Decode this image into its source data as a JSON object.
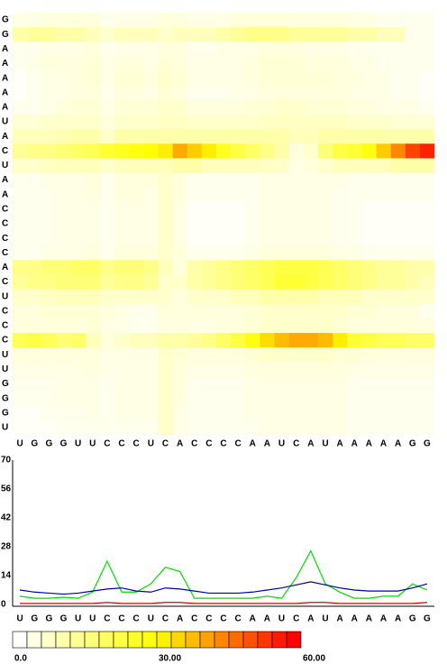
{
  "chart_data": [
    {
      "type": "heatmap",
      "x": [
        "U",
        "G",
        "G",
        "G",
        "U",
        "U",
        "C",
        "C",
        "C",
        "U",
        "C",
        "A",
        "C",
        "C",
        "C",
        "C",
        "A",
        "A",
        "U",
        "C",
        "A",
        "U",
        "A",
        "A",
        "A",
        "A",
        "A",
        "G",
        "G"
      ],
      "y": [
        "G",
        "G",
        "A",
        "A",
        "A",
        "A",
        "A",
        "U",
        "A",
        "C",
        "U",
        "A",
        "A",
        "C",
        "C",
        "C",
        "C",
        "A",
        "C",
        "U",
        "C",
        "C",
        "C",
        "U",
        "U",
        "G",
        "G",
        "G",
        "U"
      ],
      "values": [
        [
          3,
          3,
          4,
          4,
          4,
          4,
          2,
          3,
          3,
          3,
          4,
          4,
          3,
          3,
          3,
          4,
          4,
          4,
          4,
          4,
          4,
          4,
          4,
          3,
          3,
          2,
          2,
          2,
          2
        ],
        [
          10,
          12,
          12,
          10,
          10,
          8,
          6,
          8,
          8,
          8,
          6,
          8,
          8,
          8,
          10,
          12,
          14,
          14,
          14,
          12,
          12,
          12,
          12,
          10,
          10,
          8,
          8,
          2,
          2
        ],
        [
          2,
          2,
          3,
          3,
          3,
          4,
          2,
          3,
          3,
          3,
          4,
          4,
          2,
          2,
          3,
          3,
          3,
          4,
          4,
          4,
          3,
          3,
          3,
          2,
          2,
          2,
          2,
          2,
          2
        ],
        [
          2,
          3,
          4,
          4,
          4,
          5,
          3,
          4,
          4,
          3,
          5,
          4,
          3,
          3,
          3,
          3,
          4,
          5,
          5,
          5,
          4,
          4,
          4,
          3,
          3,
          2,
          2,
          2,
          2
        ],
        [
          1,
          2,
          3,
          3,
          4,
          5,
          3,
          5,
          5,
          4,
          6,
          5,
          3,
          3,
          3,
          3,
          4,
          5,
          5,
          5,
          5,
          5,
          4,
          4,
          3,
          3,
          2,
          2,
          1
        ],
        [
          1,
          2,
          3,
          3,
          4,
          4,
          2,
          4,
          4,
          3,
          5,
          4,
          2,
          2,
          2,
          3,
          3,
          4,
          4,
          4,
          4,
          4,
          4,
          3,
          3,
          3,
          2,
          2,
          1
        ],
        [
          2,
          2,
          3,
          4,
          5,
          5,
          3,
          5,
          5,
          5,
          6,
          6,
          4,
          4,
          4,
          4,
          5,
          5,
          6,
          6,
          5,
          5,
          5,
          4,
          4,
          3,
          3,
          3,
          2
        ],
        [
          5,
          5,
          6,
          6,
          6,
          6,
          4,
          6,
          6,
          6,
          7,
          7,
          6,
          6,
          6,
          6,
          6,
          7,
          7,
          7,
          7,
          7,
          7,
          6,
          6,
          6,
          5,
          5,
          5
        ],
        [
          8,
          8,
          8,
          9,
          10,
          10,
          6,
          10,
          10,
          10,
          10,
          10,
          10,
          10,
          10,
          10,
          10,
          10,
          10,
          8,
          8,
          10,
          10,
          10,
          10,
          10,
          10,
          10,
          10
        ],
        [
          12,
          14,
          14,
          16,
          18,
          20,
          24,
          26,
          28,
          30,
          32,
          40,
          36,
          32,
          26,
          22,
          18,
          14,
          10,
          4,
          6,
          16,
          22,
          24,
          28,
          36,
          44,
          52,
          56
        ],
        [
          6,
          6,
          7,
          8,
          8,
          8,
          6,
          8,
          8,
          8,
          8,
          10,
          10,
          8,
          8,
          8,
          8,
          7,
          6,
          3,
          4,
          6,
          8,
          8,
          8,
          8,
          10,
          10,
          10
        ],
        [
          2,
          2,
          3,
          3,
          3,
          4,
          2,
          4,
          4,
          4,
          6,
          4,
          2,
          2,
          2,
          2,
          2,
          3,
          3,
          3,
          3,
          3,
          3,
          2,
          2,
          2,
          2,
          2,
          2
        ],
        [
          2,
          2,
          2,
          3,
          3,
          4,
          2,
          4,
          4,
          3,
          6,
          4,
          2,
          2,
          2,
          2,
          2,
          3,
          3,
          3,
          3,
          3,
          2,
          2,
          2,
          2,
          2,
          2,
          2
        ],
        [
          2,
          2,
          2,
          3,
          3,
          3,
          2,
          3,
          3,
          3,
          6,
          3,
          1,
          1,
          1,
          1,
          2,
          3,
          3,
          3,
          3,
          3,
          2,
          2,
          1,
          1,
          1,
          1,
          1
        ],
        [
          2,
          2,
          2,
          3,
          3,
          3,
          2,
          3,
          3,
          3,
          6,
          3,
          1,
          1,
          1,
          1,
          2,
          3,
          3,
          3,
          3,
          3,
          2,
          2,
          1,
          1,
          1,
          1,
          1
        ],
        [
          2,
          2,
          2,
          3,
          3,
          3,
          2,
          3,
          3,
          3,
          6,
          3,
          1,
          1,
          1,
          1,
          2,
          3,
          3,
          3,
          3,
          3,
          2,
          2,
          1,
          1,
          1,
          1,
          1
        ],
        [
          2,
          2,
          3,
          3,
          3,
          4,
          2,
          4,
          4,
          4,
          6,
          4,
          2,
          2,
          2,
          2,
          3,
          4,
          4,
          4,
          4,
          4,
          3,
          3,
          2,
          2,
          2,
          2,
          2
        ],
        [
          14,
          14,
          16,
          16,
          18,
          18,
          14,
          16,
          16,
          14,
          8,
          4,
          10,
          12,
          14,
          16,
          18,
          20,
          22,
          22,
          22,
          20,
          18,
          16,
          14,
          12,
          12,
          10,
          10
        ],
        [
          12,
          14,
          14,
          16,
          16,
          16,
          12,
          14,
          14,
          12,
          6,
          6,
          10,
          12,
          14,
          16,
          18,
          20,
          24,
          24,
          22,
          20,
          18,
          16,
          14,
          12,
          12,
          10,
          8
        ],
        [
          6,
          6,
          7,
          8,
          8,
          8,
          6,
          6,
          6,
          6,
          6,
          4,
          6,
          6,
          6,
          8,
          8,
          10,
          10,
          10,
          10,
          8,
          8,
          8,
          6,
          6,
          6,
          6,
          6
        ],
        [
          4,
          4,
          5,
          5,
          5,
          5,
          4,
          3,
          2,
          2,
          4,
          4,
          4,
          4,
          4,
          4,
          5,
          6,
          6,
          6,
          6,
          6,
          6,
          5,
          5,
          4,
          4,
          4,
          2
        ],
        [
          4,
          4,
          4,
          4,
          4,
          5,
          3,
          3,
          2,
          2,
          4,
          4,
          3,
          3,
          4,
          4,
          5,
          6,
          6,
          6,
          6,
          6,
          5,
          4,
          4,
          4,
          4,
          4,
          4
        ],
        [
          20,
          22,
          20,
          16,
          18,
          8,
          4,
          6,
          8,
          8,
          10,
          10,
          12,
          14,
          18,
          22,
          28,
          34,
          38,
          40,
          40,
          38,
          32,
          24,
          22,
          20,
          20,
          18,
          18
        ],
        [
          4,
          4,
          4,
          4,
          4,
          4,
          3,
          3,
          3,
          3,
          6,
          5,
          4,
          4,
          4,
          4,
          5,
          6,
          6,
          6,
          6,
          6,
          5,
          5,
          4,
          4,
          4,
          4,
          4
        ],
        [
          3,
          3,
          3,
          3,
          3,
          4,
          3,
          3,
          3,
          3,
          6,
          4,
          3,
          3,
          3,
          3,
          4,
          4,
          4,
          4,
          4,
          4,
          4,
          3,
          3,
          3,
          3,
          3,
          3
        ],
        [
          2,
          2,
          2,
          3,
          3,
          3,
          2,
          3,
          3,
          3,
          6,
          4,
          2,
          2,
          2,
          2,
          3,
          3,
          3,
          3,
          3,
          3,
          3,
          2,
          2,
          2,
          2,
          2,
          2
        ],
        [
          2,
          2,
          2,
          3,
          3,
          3,
          2,
          3,
          3,
          3,
          6,
          4,
          2,
          2,
          2,
          2,
          3,
          3,
          3,
          3,
          3,
          3,
          3,
          2,
          2,
          2,
          2,
          2,
          2
        ],
        [
          1,
          1,
          2,
          2,
          2,
          3,
          2,
          3,
          3,
          3,
          6,
          3,
          2,
          2,
          2,
          2,
          3,
          3,
          3,
          3,
          3,
          3,
          3,
          2,
          2,
          2,
          2,
          2,
          2
        ],
        [
          1,
          1,
          1,
          2,
          2,
          2,
          2,
          2,
          2,
          2,
          6,
          3,
          2,
          2,
          2,
          2,
          2,
          3,
          3,
          3,
          3,
          3,
          3,
          2,
          2,
          2,
          2,
          2,
          2
        ]
      ],
      "colors": [
        "#ffffff",
        "#ffff00",
        "#ff0000"
      ],
      "zlim": [
        0,
        60
      ],
      "zticks": [
        {
          "value": 0,
          "label": "0.0"
        },
        {
          "value": 30,
          "label": "30.00"
        },
        {
          "value": 60,
          "label": "60.00"
        }
      ]
    },
    {
      "type": "line",
      "categories": [
        "U",
        "G",
        "G",
        "G",
        "U",
        "U",
        "C",
        "C",
        "C",
        "U",
        "C",
        "A",
        "C",
        "C",
        "C",
        "C",
        "A",
        "A",
        "U",
        "C",
        "A",
        "U",
        "A",
        "A",
        "A",
        "A",
        "A",
        "G",
        "G"
      ],
      "series": [
        {
          "color": "#00dd00",
          "values": [
            4,
            3,
            3,
            3.5,
            3,
            6,
            21,
            6,
            6,
            10,
            18,
            16,
            3,
            3,
            3,
            3,
            3,
            4,
            3,
            13,
            26,
            10,
            6,
            3,
            3,
            4,
            4,
            10,
            7
          ]
        },
        {
          "color": "#0000aa",
          "values": [
            7,
            6,
            5.5,
            5,
            5.5,
            6.5,
            7.5,
            8,
            6.5,
            6,
            8,
            7.5,
            6.5,
            5.5,
            5.5,
            5.5,
            6,
            7,
            8,
            9.5,
            11,
            9.5,
            8,
            7,
            6.5,
            6.5,
            6.5,
            8,
            10
          ]
        },
        {
          "color": "#dd0000",
          "values": [
            0.5,
            0.5,
            0.5,
            0.5,
            0.5,
            0.5,
            1,
            0.5,
            0.5,
            0.5,
            1,
            1,
            0.5,
            0.5,
            0.5,
            0.5,
            0.5,
            0.5,
            0.5,
            0.5,
            1,
            1,
            0.5,
            0.5,
            0.5,
            0.5,
            0.5,
            0.5,
            1
          ]
        }
      ],
      "ylim": [
        0,
        70
      ],
      "yticks": [
        0,
        14,
        28,
        42,
        56,
        70
      ]
    }
  ]
}
